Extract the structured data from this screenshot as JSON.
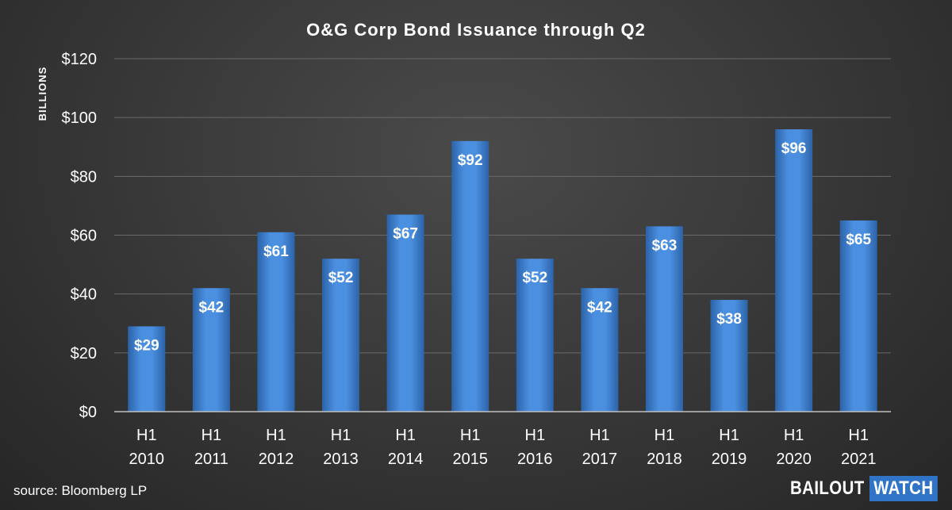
{
  "chart_data": {
    "type": "bar",
    "title": "O&G Corp Bond Issuance through Q2",
    "ylabel": "BILLIONS",
    "xlabel": "",
    "categories": [
      [
        "H1",
        "2010"
      ],
      [
        "H1",
        "2011"
      ],
      [
        "H1",
        "2012"
      ],
      [
        "H1",
        "2013"
      ],
      [
        "H1",
        "2014"
      ],
      [
        "H1",
        "2015"
      ],
      [
        "H1",
        "2016"
      ],
      [
        "H1",
        "2017"
      ],
      [
        "H1",
        "2018"
      ],
      [
        "H1",
        "2019"
      ],
      [
        "H1",
        "2020"
      ],
      [
        "H1",
        "2021"
      ]
    ],
    "values": [
      29,
      42,
      61,
      52,
      67,
      92,
      52,
      42,
      63,
      38,
      96,
      65
    ],
    "data_labels": [
      "$29",
      "$42",
      "$61",
      "$52",
      "$67",
      "$92",
      "$52",
      "$42",
      "$63",
      "$38",
      "$96",
      "$65"
    ],
    "ylim": [
      0,
      120
    ],
    "yticks": [
      0,
      20,
      40,
      60,
      80,
      100,
      120
    ],
    "ytick_labels": [
      "$0",
      "$20",
      "$40",
      "$60",
      "$80",
      "$100",
      "$120"
    ],
    "grid": true,
    "bar_color": "#3a7fd4"
  },
  "source": "source: Bloomberg LP",
  "logo": {
    "word1": "BAILOUT",
    "word2": "WATCH"
  }
}
